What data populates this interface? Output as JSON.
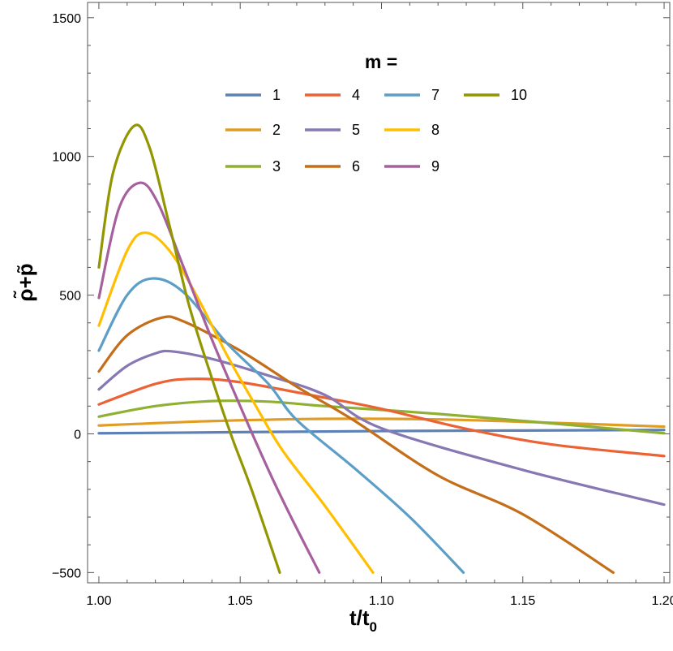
{
  "chart_data": {
    "type": "line",
    "xlabel": "t/t_0",
    "ylabel": "ρ̃+p̃",
    "xlim": [
      0.996,
      1.202
    ],
    "ylim": [
      -537,
      1555
    ],
    "x_ticks": [
      "1.00",
      "1.05",
      "1.10",
      "1.15",
      "1.20"
    ],
    "x_tick_values": [
      1.0,
      1.05,
      1.1,
      1.15,
      1.2
    ],
    "y_ticks": [
      "−500",
      "0",
      "500",
      "1000",
      "1500"
    ],
    "y_tick_values": [
      -500,
      0,
      500,
      1000,
      1500
    ],
    "legend_title": "m =",
    "legend_placement": "top-right",
    "grid": false,
    "series": [
      {
        "name": "1",
        "color": "#5e81b5",
        "points": [
          [
            1.0,
            2
          ],
          [
            1.05,
            6
          ],
          [
            1.1,
            10
          ],
          [
            1.15,
            12
          ],
          [
            1.2,
            14
          ]
        ]
      },
      {
        "name": "2",
        "color": "#e19c24",
        "points": [
          [
            1.0,
            30
          ],
          [
            1.04,
            46
          ],
          [
            1.08,
            54
          ],
          [
            1.12,
            52
          ],
          [
            1.16,
            40
          ],
          [
            1.2,
            26
          ]
        ]
      },
      {
        "name": "3",
        "color": "#8fb032",
        "points": [
          [
            1.0,
            62
          ],
          [
            1.02,
            100
          ],
          [
            1.04,
            118
          ],
          [
            1.06,
            116
          ],
          [
            1.08,
            100
          ],
          [
            1.12,
            72
          ],
          [
            1.16,
            38
          ],
          [
            1.2,
            2
          ]
        ]
      },
      {
        "name": "4",
        "color": "#eb6235",
        "points": [
          [
            1.0,
            106
          ],
          [
            1.02,
            180
          ],
          [
            1.033,
            198
          ],
          [
            1.05,
            186
          ],
          [
            1.08,
            130
          ],
          [
            1.1,
            90
          ],
          [
            1.13,
            18
          ],
          [
            1.16,
            -38
          ],
          [
            1.2,
            -80
          ]
        ]
      },
      {
        "name": "5",
        "color": "#8778b3",
        "points": [
          [
            1.0,
            160
          ],
          [
            1.01,
            245
          ],
          [
            1.02,
            290
          ],
          [
            1.026,
            297
          ],
          [
            1.04,
            270
          ],
          [
            1.06,
            210
          ],
          [
            1.08,
            140
          ],
          [
            1.1,
            20
          ],
          [
            1.15,
            -130
          ],
          [
            1.2,
            -255
          ]
        ]
      },
      {
        "name": "6",
        "color": "#c56e1a",
        "points": [
          [
            1.0,
            225
          ],
          [
            1.01,
            355
          ],
          [
            1.022,
            418
          ],
          [
            1.03,
            405
          ],
          [
            1.05,
            300
          ],
          [
            1.07,
            170
          ],
          [
            1.09,
            50
          ],
          [
            1.12,
            -150
          ],
          [
            1.15,
            -290
          ],
          [
            1.182,
            -500
          ]
        ]
      },
      {
        "name": "7",
        "color": "#5d9ec7",
        "points": [
          [
            1.0,
            300
          ],
          [
            1.01,
            500
          ],
          [
            1.019,
            560
          ],
          [
            1.03,
            510
          ],
          [
            1.045,
            330
          ],
          [
            1.06,
            180
          ],
          [
            1.07,
            50
          ],
          [
            1.09,
            -120
          ],
          [
            1.11,
            -300
          ],
          [
            1.129,
            -500
          ]
        ]
      },
      {
        "name": "8",
        "color": "#ffbf00",
        "points": [
          [
            1.0,
            390
          ],
          [
            1.01,
            660
          ],
          [
            1.0165,
            725
          ],
          [
            1.025,
            660
          ],
          [
            1.035,
            490
          ],
          [
            1.045,
            290
          ],
          [
            1.055,
            110
          ],
          [
            1.065,
            -60
          ],
          [
            1.08,
            -260
          ],
          [
            1.097,
            -500
          ]
        ]
      },
      {
        "name": "9",
        "color": "#a5609d",
        "points": [
          [
            1.0,
            490
          ],
          [
            1.007,
            810
          ],
          [
            1.0145,
            905
          ],
          [
            1.021,
            830
          ],
          [
            1.03,
            600
          ],
          [
            1.04,
            340
          ],
          [
            1.05,
            100
          ],
          [
            1.06,
            -130
          ],
          [
            1.068,
            -300
          ],
          [
            1.078,
            -500
          ]
        ]
      },
      {
        "name": "10",
        "color": "#929600",
        "points": [
          [
            1.0,
            600
          ],
          [
            1.005,
            940
          ],
          [
            1.0125,
            1110
          ],
          [
            1.018,
            1030
          ],
          [
            1.025,
            750
          ],
          [
            1.032,
            460
          ],
          [
            1.04,
            200
          ],
          [
            1.047,
            -10
          ],
          [
            1.054,
            -200
          ],
          [
            1.064,
            -500
          ]
        ]
      }
    ]
  }
}
